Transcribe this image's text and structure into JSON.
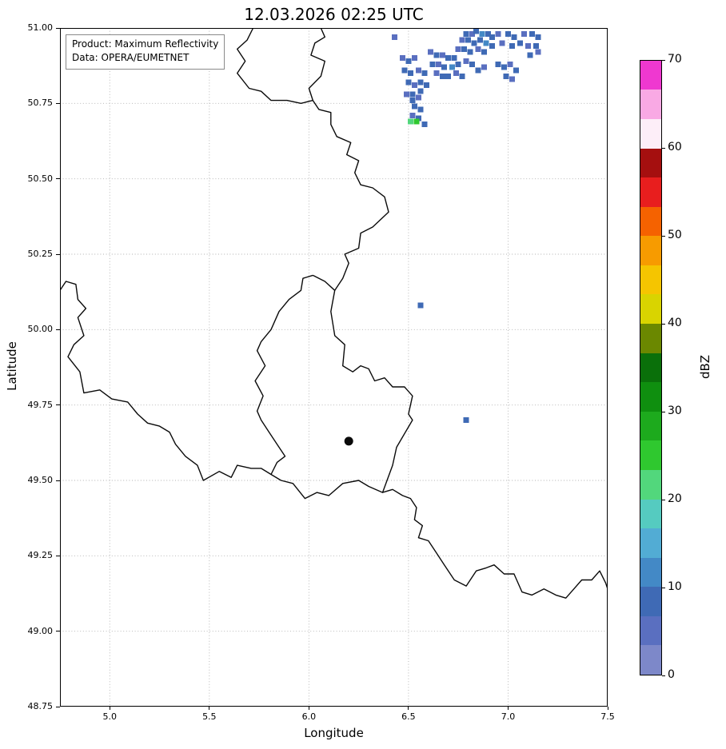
{
  "title": "12.03.2026 02:25 UTC",
  "info_box": {
    "line1": "Product: Maximum Reflectivity",
    "line2": "Data: OPERA/EUMETNET"
  },
  "axes": {
    "xlabel": "Longitude",
    "ylabel": "Latitude",
    "xlim": [
      4.75,
      7.5
    ],
    "ylim": [
      48.75,
      51.0
    ],
    "xticks": [
      5.0,
      5.5,
      6.0,
      6.5,
      7.0,
      7.5
    ],
    "yticks": [
      48.75,
      49.0,
      49.25,
      49.5,
      49.75,
      50.0,
      50.25,
      50.5,
      50.75,
      51.0
    ],
    "grid": true
  },
  "colorbar": {
    "label": "dBZ",
    "vmin": 0,
    "vmax": 70,
    "ticks": [
      0,
      10,
      20,
      30,
      40,
      50,
      60,
      70
    ],
    "colors": [
      "#7d88c9",
      "#5a6fc0",
      "#3f6ab5",
      "#4389c6",
      "#52acd4",
      "#55cbc0",
      "#52d77c",
      "#2fc82f",
      "#1daa1d",
      "#0f8f0f",
      "#0a700a",
      "#6b8800",
      "#d9d400",
      "#f5c500",
      "#f79b00",
      "#f56200",
      "#e81e1e",
      "#a50f0f",
      "#fdeef8",
      "#f9a9e4",
      "#ef38d0"
    ]
  },
  "chart_data": {
    "type": "heatmap",
    "title": "12.03.2026 02:25 UTC",
    "xlabel": "Longitude",
    "ylabel": "Latitude",
    "xlim": [
      4.75,
      7.5
    ],
    "ylim": [
      48.75,
      51.0
    ],
    "value_units": "dBZ",
    "legend_position": "right-colorbar",
    "grid": "dotted",
    "marker": {
      "lon": 6.2,
      "lat": 49.63
    },
    "echoes": [
      [
        6.79,
        50.98,
        8
      ],
      [
        6.82,
        50.98,
        5
      ],
      [
        6.84,
        50.99,
        8
      ],
      [
        6.87,
        50.98,
        11
      ],
      [
        6.9,
        50.98,
        8
      ],
      [
        6.92,
        50.97,
        8
      ],
      [
        6.95,
        50.98,
        5
      ],
      [
        7.0,
        50.98,
        8
      ],
      [
        7.03,
        50.97,
        8
      ],
      [
        7.08,
        50.98,
        5
      ],
      [
        7.12,
        50.98,
        8
      ],
      [
        7.15,
        50.97,
        8
      ],
      [
        6.77,
        50.96,
        5
      ],
      [
        6.8,
        50.96,
        8
      ],
      [
        6.83,
        50.95,
        8
      ],
      [
        6.86,
        50.96,
        8
      ],
      [
        6.89,
        50.95,
        11
      ],
      [
        6.92,
        50.94,
        8
      ],
      [
        6.97,
        50.95,
        5
      ],
      [
        7.02,
        50.94,
        8
      ],
      [
        7.06,
        50.95,
        8
      ],
      [
        7.1,
        50.94,
        5
      ],
      [
        7.14,
        50.94,
        8
      ],
      [
        6.75,
        50.93,
        5
      ],
      [
        6.78,
        50.93,
        8
      ],
      [
        6.81,
        50.92,
        8
      ],
      [
        6.85,
        50.93,
        5
      ],
      [
        6.88,
        50.92,
        8
      ],
      [
        7.11,
        50.91,
        8
      ],
      [
        7.15,
        50.92,
        5
      ],
      [
        6.61,
        50.92,
        5
      ],
      [
        6.64,
        50.91,
        8
      ],
      [
        6.67,
        50.91,
        5
      ],
      [
        6.7,
        50.9,
        8
      ],
      [
        6.73,
        50.9,
        8
      ],
      [
        6.62,
        50.88,
        8
      ],
      [
        6.65,
        50.88,
        5
      ],
      [
        6.68,
        50.87,
        8
      ],
      [
        6.72,
        50.87,
        11
      ],
      [
        6.75,
        50.88,
        8
      ],
      [
        6.79,
        50.89,
        5
      ],
      [
        6.82,
        50.88,
        8
      ],
      [
        6.64,
        50.85,
        5
      ],
      [
        6.67,
        50.84,
        8
      ],
      [
        6.7,
        50.84,
        8
      ],
      [
        6.74,
        50.85,
        5
      ],
      [
        6.77,
        50.84,
        8
      ],
      [
        6.85,
        50.86,
        8
      ],
      [
        6.88,
        50.87,
        5
      ],
      [
        6.95,
        50.88,
        8
      ],
      [
        6.98,
        50.87,
        8
      ],
      [
        7.01,
        50.88,
        5
      ],
      [
        7.04,
        50.86,
        8
      ],
      [
        6.99,
        50.84,
        8
      ],
      [
        7.02,
        50.83,
        5
      ],
      [
        6.47,
        50.9,
        5
      ],
      [
        6.5,
        50.89,
        8
      ],
      [
        6.53,
        50.9,
        5
      ],
      [
        6.48,
        50.86,
        8
      ],
      [
        6.51,
        50.85,
        8
      ],
      [
        6.55,
        50.86,
        5
      ],
      [
        6.58,
        50.85,
        8
      ],
      [
        6.5,
        50.82,
        8
      ],
      [
        6.53,
        50.81,
        5
      ],
      [
        6.56,
        50.82,
        8
      ],
      [
        6.59,
        50.81,
        8
      ],
      [
        6.49,
        50.78,
        5
      ],
      [
        6.52,
        50.78,
        8
      ],
      [
        6.56,
        50.79,
        8
      ],
      [
        6.52,
        50.76,
        8
      ],
      [
        6.55,
        50.77,
        5
      ],
      [
        6.53,
        50.74,
        8
      ],
      [
        6.56,
        50.73,
        8
      ],
      [
        6.52,
        50.71,
        5
      ],
      [
        6.55,
        50.7,
        8
      ],
      [
        6.51,
        50.69,
        21
      ],
      [
        6.54,
        50.69,
        25
      ],
      [
        6.58,
        50.68,
        8
      ],
      [
        6.43,
        50.97,
        5
      ],
      [
        6.56,
        50.08,
        8
      ],
      [
        6.79,
        49.7,
        8
      ]
    ],
    "borders": [
      {
        "name": "luxembourg",
        "points": [
          [
            6.02,
            50.18
          ],
          [
            6.08,
            50.16
          ],
          [
            6.13,
            50.13
          ],
          [
            6.11,
            50.06
          ],
          [
            6.13,
            49.98
          ],
          [
            6.18,
            49.95
          ],
          [
            6.17,
            49.88
          ],
          [
            6.22,
            49.86
          ],
          [
            6.26,
            49.88
          ],
          [
            6.3,
            49.87
          ],
          [
            6.33,
            49.83
          ],
          [
            6.38,
            49.84
          ],
          [
            6.42,
            49.81
          ],
          [
            6.48,
            49.81
          ],
          [
            6.52,
            49.78
          ],
          [
            6.5,
            49.72
          ],
          [
            6.52,
            49.7
          ],
          [
            6.44,
            49.61
          ],
          [
            6.42,
            49.55
          ],
          [
            6.37,
            49.46
          ],
          [
            6.3,
            49.48
          ],
          [
            6.25,
            49.5
          ],
          [
            6.17,
            49.49
          ],
          [
            6.1,
            49.45
          ],
          [
            6.04,
            49.46
          ],
          [
            5.98,
            49.44
          ],
          [
            5.92,
            49.49
          ],
          [
            5.86,
            49.5
          ],
          [
            5.81,
            49.52
          ],
          [
            5.84,
            49.56
          ],
          [
            5.88,
            49.58
          ],
          [
            5.84,
            49.62
          ],
          [
            5.8,
            49.66
          ],
          [
            5.76,
            49.7
          ],
          [
            5.74,
            49.73
          ],
          [
            5.77,
            49.78
          ],
          [
            5.73,
            49.83
          ],
          [
            5.78,
            49.88
          ],
          [
            5.74,
            49.93
          ],
          [
            5.76,
            49.96
          ],
          [
            5.81,
            50.0
          ],
          [
            5.85,
            50.06
          ],
          [
            5.9,
            50.1
          ],
          [
            5.96,
            50.13
          ],
          [
            5.97,
            50.17
          ],
          [
            6.02,
            50.18
          ]
        ]
      },
      {
        "name": "belgium-germany",
        "points": [
          [
            6.13,
            50.13
          ],
          [
            6.17,
            50.17
          ],
          [
            6.2,
            50.22
          ],
          [
            6.18,
            50.25
          ],
          [
            6.25,
            50.27
          ],
          [
            6.26,
            50.32
          ],
          [
            6.32,
            50.34
          ],
          [
            6.4,
            50.39
          ],
          [
            6.38,
            50.44
          ],
          [
            6.32,
            50.47
          ],
          [
            6.26,
            50.48
          ],
          [
            6.23,
            50.52
          ],
          [
            6.25,
            50.56
          ],
          [
            6.19,
            50.58
          ],
          [
            6.21,
            50.62
          ],
          [
            6.14,
            50.64
          ],
          [
            6.11,
            50.68
          ],
          [
            6.11,
            50.72
          ],
          [
            6.05,
            50.73
          ],
          [
            6.02,
            50.76
          ]
        ]
      },
      {
        "name": "germany-netherlands",
        "points": [
          [
            6.02,
            50.76
          ],
          [
            6.0,
            50.8
          ],
          [
            6.06,
            50.84
          ],
          [
            6.08,
            50.89
          ],
          [
            6.01,
            50.91
          ],
          [
            6.03,
            50.95
          ],
          [
            6.08,
            50.97
          ],
          [
            6.06,
            51.0
          ]
        ]
      },
      {
        "name": "belgium-netherlands",
        "points": [
          [
            6.02,
            50.76
          ],
          [
            5.96,
            50.75
          ],
          [
            5.89,
            50.76
          ],
          [
            5.81,
            50.76
          ],
          [
            5.76,
            50.79
          ],
          [
            5.7,
            50.8
          ],
          [
            5.64,
            50.85
          ],
          [
            5.68,
            50.89
          ],
          [
            5.64,
            50.93
          ],
          [
            5.69,
            50.96
          ],
          [
            5.72,
            51.0
          ]
        ]
      },
      {
        "name": "france-belgium",
        "points": [
          [
            5.81,
            49.52
          ],
          [
            5.76,
            49.54
          ],
          [
            5.71,
            49.54
          ],
          [
            5.64,
            49.55
          ],
          [
            5.61,
            49.51
          ],
          [
            5.55,
            49.53
          ],
          [
            5.47,
            49.5
          ],
          [
            5.44,
            49.55
          ],
          [
            5.38,
            49.58
          ],
          [
            5.33,
            49.62
          ],
          [
            5.3,
            49.66
          ],
          [
            5.25,
            49.68
          ],
          [
            5.19,
            49.69
          ],
          [
            5.14,
            49.72
          ],
          [
            5.09,
            49.76
          ],
          [
            5.01,
            49.77
          ],
          [
            4.95,
            49.8
          ],
          [
            4.87,
            49.79
          ],
          [
            4.85,
            49.86
          ],
          [
            4.79,
            49.91
          ],
          [
            4.82,
            49.95
          ],
          [
            4.87,
            49.98
          ],
          [
            4.84,
            50.04
          ],
          [
            4.88,
            50.07
          ],
          [
            4.84,
            50.1
          ],
          [
            4.83,
            50.15
          ],
          [
            4.78,
            50.16
          ],
          [
            4.75,
            50.13
          ]
        ]
      },
      {
        "name": "france-germany",
        "points": [
          [
            6.37,
            49.46
          ],
          [
            6.42,
            49.47
          ],
          [
            6.47,
            49.45
          ],
          [
            6.51,
            49.44
          ],
          [
            6.54,
            49.41
          ],
          [
            6.53,
            49.37
          ],
          [
            6.57,
            49.35
          ],
          [
            6.55,
            49.31
          ],
          [
            6.6,
            49.3
          ],
          [
            6.64,
            49.26
          ],
          [
            6.68,
            49.22
          ],
          [
            6.73,
            49.17
          ],
          [
            6.79,
            49.15
          ],
          [
            6.84,
            49.2
          ],
          [
            6.89,
            49.21
          ],
          [
            6.93,
            49.22
          ],
          [
            6.98,
            49.19
          ],
          [
            7.03,
            49.19
          ],
          [
            7.07,
            49.13
          ],
          [
            7.12,
            49.12
          ],
          [
            7.18,
            49.14
          ],
          [
            7.24,
            49.12
          ],
          [
            7.29,
            49.11
          ],
          [
            7.33,
            49.14
          ],
          [
            7.37,
            49.17
          ],
          [
            7.42,
            49.17
          ],
          [
            7.46,
            49.2
          ],
          [
            7.49,
            49.16
          ],
          [
            7.5,
            49.14
          ]
        ]
      }
    ]
  }
}
